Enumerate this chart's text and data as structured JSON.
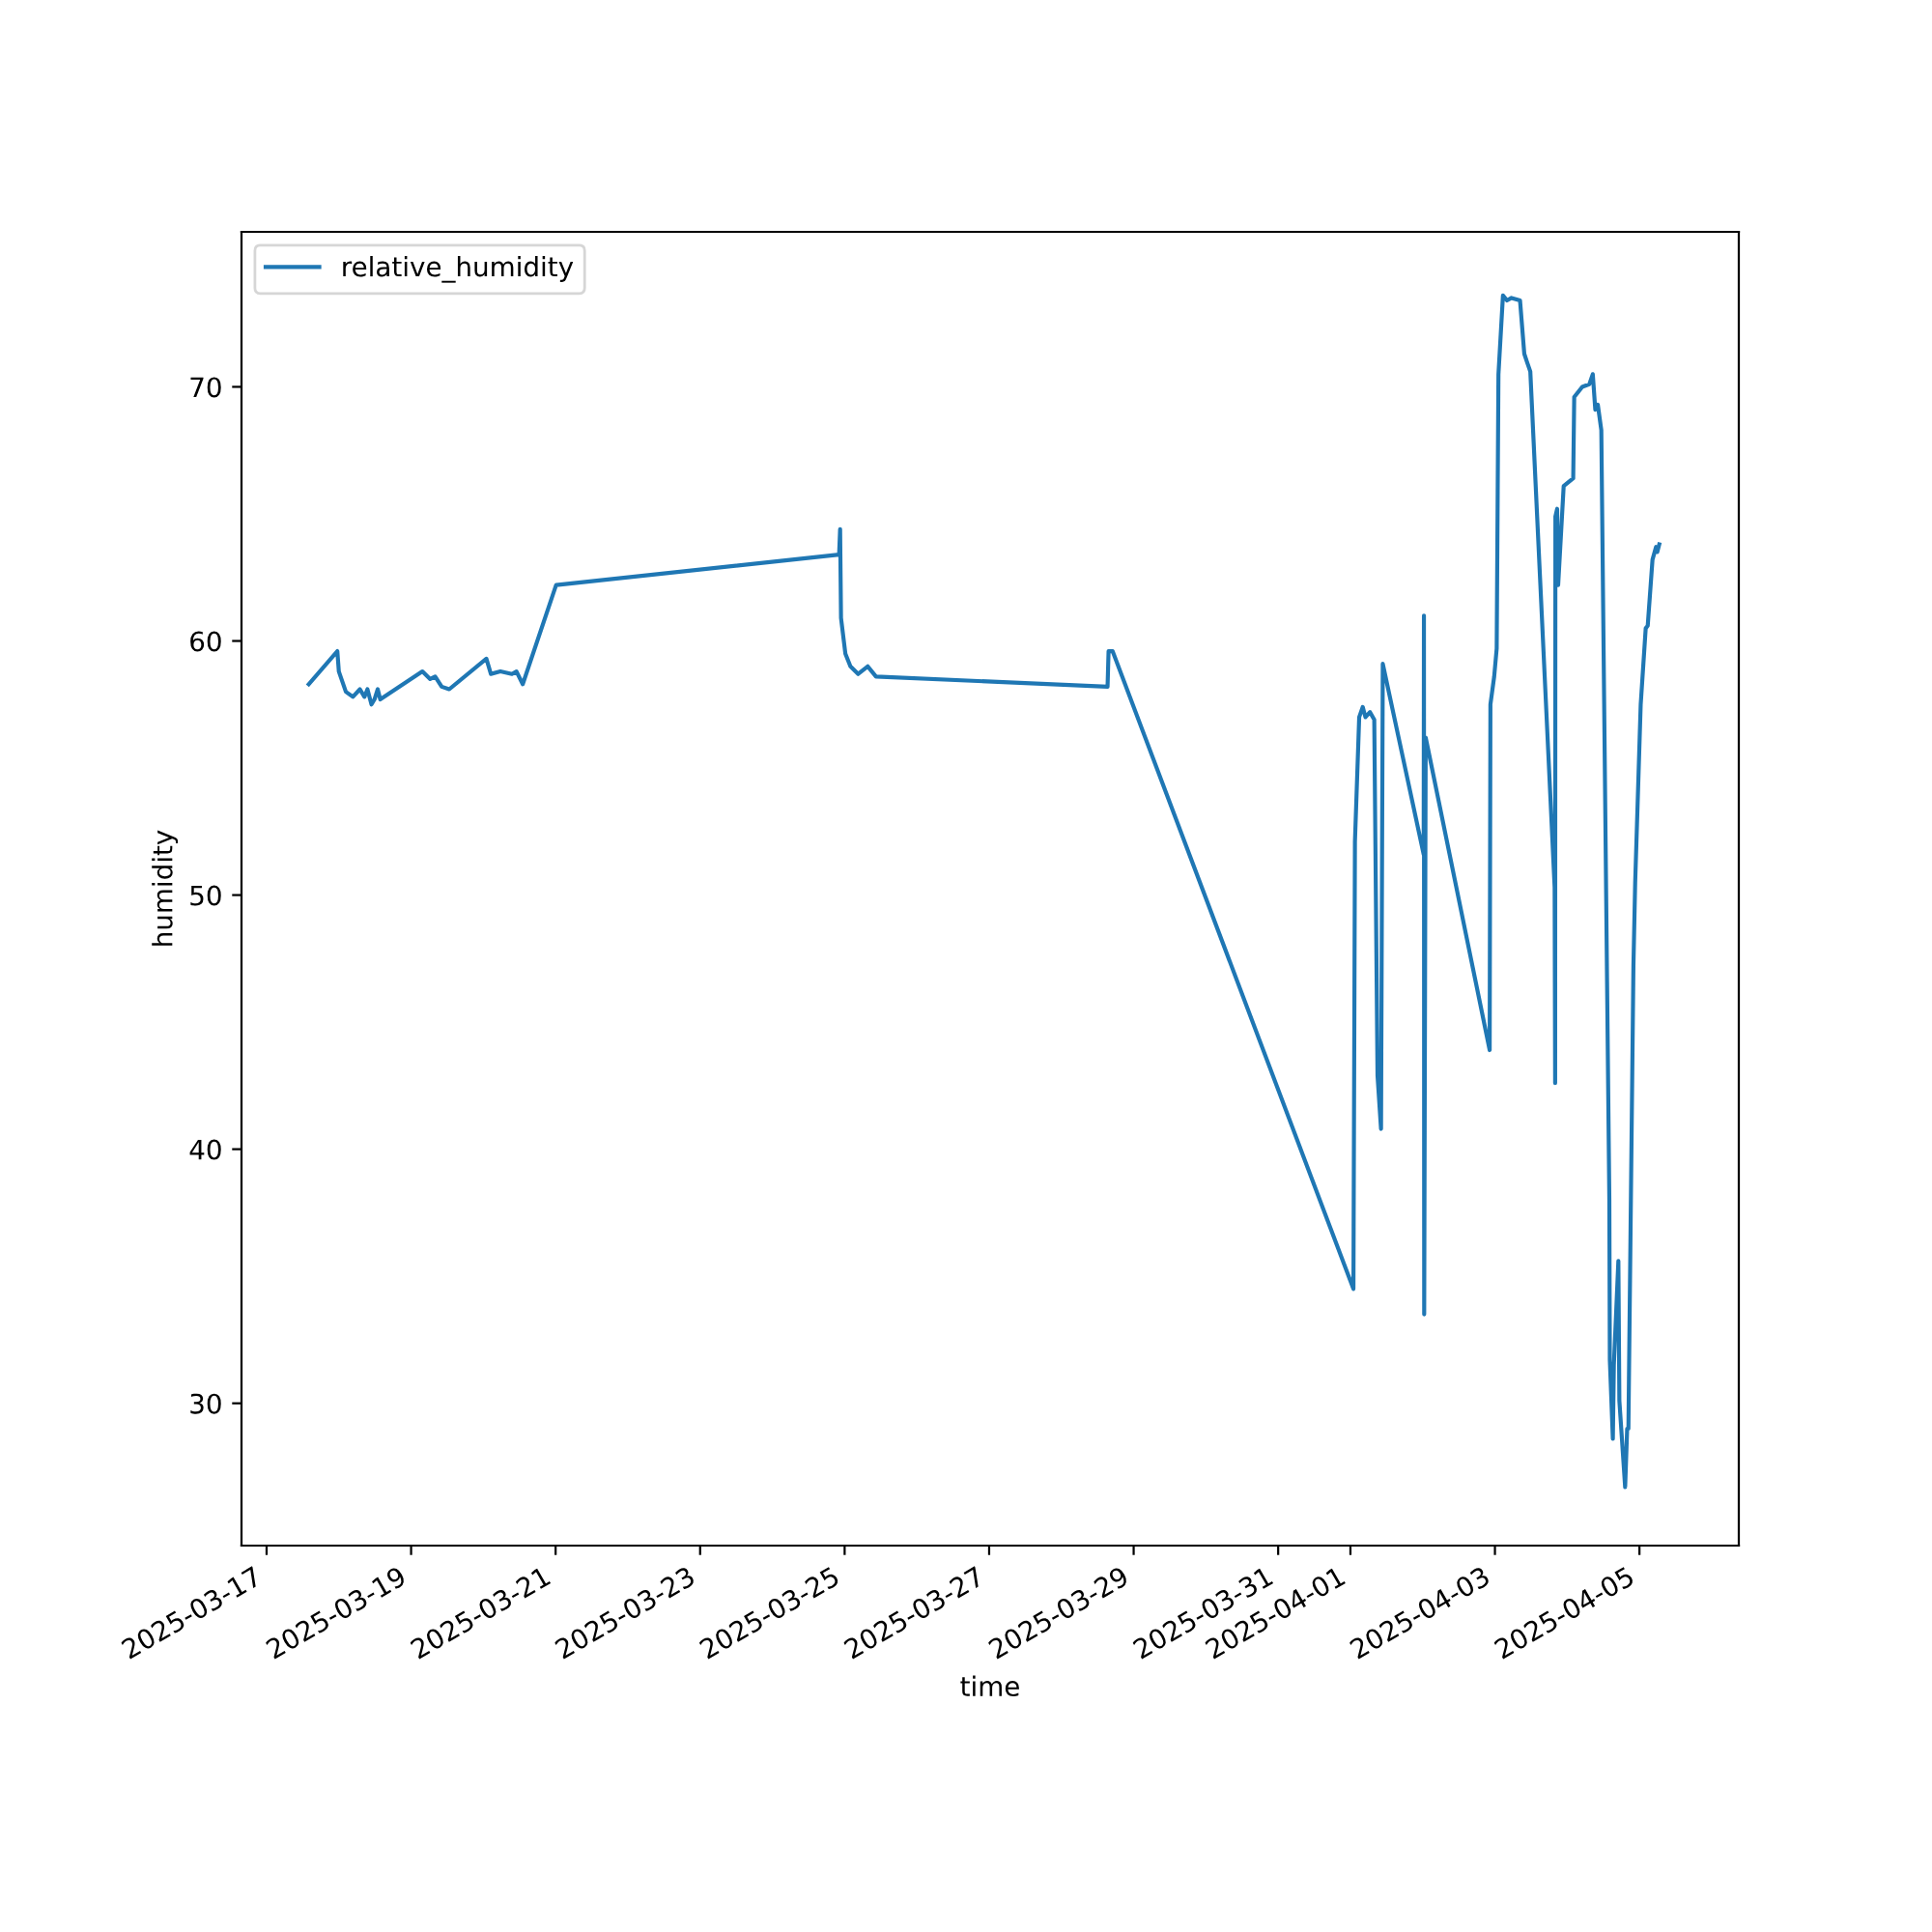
{
  "chart_data": {
    "type": "line",
    "xlabel": "time",
    "ylabel": "humidity",
    "legend": "top left",
    "grid": false,
    "marker": "none",
    "line_style": "solid",
    "xlim": [
      "2025-03-16T15:40",
      "2025-04-06T09:00"
    ],
    "xticks": [
      "2025-03-17",
      "2025-03-19",
      "2025-03-21",
      "2025-03-23",
      "2025-03-25",
      "2025-03-27",
      "2025-03-29",
      "2025-03-31",
      "2025-04-01",
      "2025-04-03",
      "2025-04-05"
    ],
    "ylim": [
      24.4,
      76.1
    ],
    "yticks": [
      30,
      40,
      50,
      60,
      70
    ],
    "series": [
      {
        "name": "relative_humidity",
        "color": "#1f77b4",
        "x": [
          "2025-03-17T14:00",
          "2025-03-17T23:30",
          "2025-03-18T00:00",
          "2025-03-18T02:20",
          "2025-03-18T04:40",
          "2025-03-18T07:00",
          "2025-03-18T08:30",
          "2025-03-18T09:30",
          "2025-03-18T10:50",
          "2025-03-18T11:50",
          "2025-03-18T12:55",
          "2025-03-18T13:45",
          "2025-03-19T03:45",
          "2025-03-19T06:20",
          "2025-03-19T08:00",
          "2025-03-19T10:10",
          "2025-03-19T12:40",
          "2025-03-20T01:00",
          "2025-03-20T02:30",
          "2025-03-20T05:40",
          "2025-03-20T09:30",
          "2025-03-20T11:00",
          "2025-03-20T13:05",
          "2025-03-21T00:10",
          "2025-03-24T22:10",
          "2025-03-24T22:30",
          "2025-03-24T22:48",
          "2025-03-25T00:15",
          "2025-03-25T01:55",
          "2025-03-25T04:30",
          "2025-03-25T07:40",
          "2025-03-25T10:25",
          "2025-03-28T15:20",
          "2025-03-28T15:40",
          "2025-03-28T17:00",
          "2025-04-01T01:00",
          "2025-04-01T01:30",
          "2025-04-01T02:55",
          "2025-04-01T04:05",
          "2025-04-01T05:00",
          "2025-04-01T06:30",
          "2025-04-01T07:55",
          "2025-04-01T09:00",
          "2025-04-01T10:10",
          "2025-04-01T10:45",
          "2025-04-02T00:20",
          "2025-04-02T00:25",
          "2025-04-02T00:30",
          "2025-04-02T01:00",
          "2025-04-02T22:15",
          "2025-04-02T22:30",
          "2025-04-02T23:45",
          "2025-04-03T00:35",
          "2025-04-03T01:10",
          "2025-04-03T02:40",
          "2025-04-03T04:00",
          "2025-04-03T05:30",
          "2025-04-03T08:20",
          "2025-04-03T09:45",
          "2025-04-03T10:35",
          "2025-04-03T11:45",
          "2025-04-03T19:50",
          "2025-04-03T20:00",
          "2025-04-03T20:05",
          "2025-04-03T20:40",
          "2025-04-03T21:00",
          "2025-04-03T22:50",
          "2025-04-04T02:00",
          "2025-04-04T02:20",
          "2025-04-04T03:40",
          "2025-04-04T05:00",
          "2025-04-04T07:20",
          "2025-04-04T08:30",
          "2025-04-04T09:20",
          "2025-04-04T10:10",
          "2025-04-04T11:20",
          "2025-04-04T14:00",
          "2025-04-04T14:10",
          "2025-04-04T15:10",
          "2025-04-04T15:30",
          "2025-04-04T17:00",
          "2025-04-04T17:20",
          "2025-04-04T19:15",
          "2025-04-04T19:55",
          "2025-04-04T20:20",
          "2025-04-04T22:00",
          "2025-04-04T22:35",
          "2025-04-05T00:25",
          "2025-04-05T02:05",
          "2025-04-05T02:45",
          "2025-04-05T04:20",
          "2025-04-05T05:30",
          "2025-04-05T05:55",
          "2025-04-05T06:35"
        ],
        "values": [
          58.3,
          59.6,
          58.8,
          58.0,
          57.8,
          58.1,
          57.8,
          58.1,
          57.5,
          57.7,
          58.1,
          57.7,
          58.8,
          58.5,
          58.6,
          58.2,
          58.1,
          59.3,
          58.7,
          58.8,
          58.7,
          58.8,
          58.3,
          62.2,
          63.4,
          64.4,
          60.9,
          59.5,
          59.0,
          58.7,
          59.0,
          58.6,
          58.2,
          59.6,
          59.6,
          34.5,
          52.1,
          57.0,
          57.4,
          57.0,
          57.2,
          56.9,
          42.9,
          40.8,
          59.1,
          51.6,
          61.0,
          33.5,
          56.2,
          43.9,
          57.5,
          58.6,
          59.7,
          70.5,
          73.6,
          73.4,
          73.5,
          73.4,
          71.3,
          71.0,
          70.6,
          50.3,
          42.6,
          64.9,
          65.2,
          62.2,
          66.1,
          66.4,
          69.6,
          69.8,
          70.0,
          70.1,
          70.5,
          69.1,
          69.3,
          68.3,
          38.0,
          31.7,
          28.6,
          31.5,
          35.6,
          30.1,
          26.7,
          29.0,
          29.0,
          47.2,
          50.5,
          57.5,
          60.5,
          60.6,
          63.2,
          63.7,
          63.5,
          63.8
        ]
      }
    ]
  }
}
